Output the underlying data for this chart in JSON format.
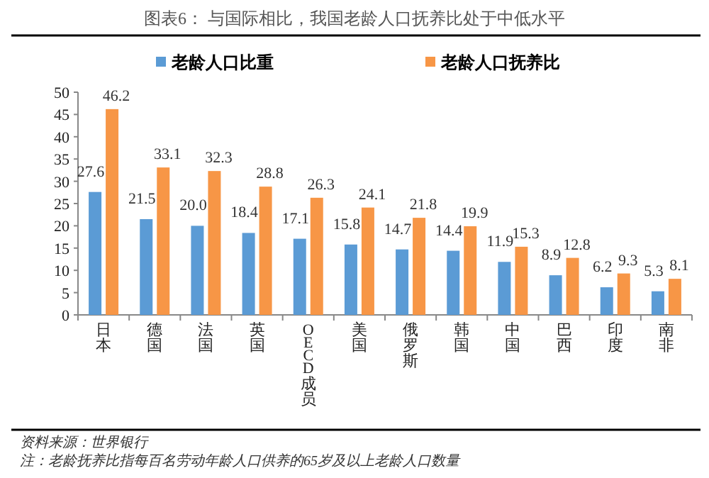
{
  "chart_data": {
    "type": "bar",
    "title": "图表6：  与国际相比，我国老龄人口抚养比处于中低水平",
    "categories": [
      "日本",
      "德国",
      "法国",
      "英国",
      "OECD成员",
      "美国",
      "俄罗斯",
      "韩国",
      "中国",
      "巴西",
      "印度",
      "南非"
    ],
    "series": [
      {
        "name": "老龄人口比重",
        "color": "#5b9bd5",
        "values": [
          27.6,
          21.5,
          20.0,
          18.4,
          17.1,
          15.8,
          14.7,
          14.4,
          11.9,
          8.9,
          6.2,
          5.3
        ],
        "value_labels": [
          "27.6",
          "21.5",
          "20.0",
          "18.4",
          "17.1",
          "15.8",
          "14.7",
          "14.4",
          "11.9",
          "8.9",
          "6.2",
          "5.3"
        ]
      },
      {
        "name": "老龄人口抚养比",
        "color": "#f79646",
        "values": [
          46.2,
          33.1,
          32.3,
          28.8,
          26.3,
          24.1,
          21.8,
          19.9,
          15.3,
          12.8,
          9.3,
          8.1
        ]
      }
    ],
    "ylim": [
      0,
      50
    ],
    "yticks": [
      0,
      5,
      10,
      15,
      20,
      25,
      30,
      35,
      40,
      45,
      50
    ],
    "data_labels": true,
    "legend": "top",
    "grid": false,
    "annotations": [
      "资料来源：世界银行",
      "注：老龄抚养比指每百名劳动年龄人口供养的65岁及以上老龄人口数量"
    ]
  }
}
